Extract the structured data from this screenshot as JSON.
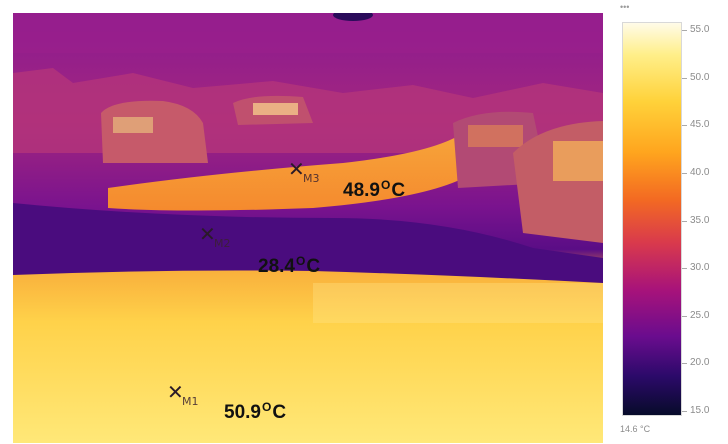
{
  "thermal_image": {
    "markers": [
      {
        "id": "M1",
        "cross": "✕",
        "tag": "M1",
        "value": "50.9",
        "unit": "C",
        "degree": "O"
      },
      {
        "id": "M2",
        "cross": "✕",
        "tag": "M2",
        "value": "28.4",
        "unit": "C",
        "degree": "O"
      },
      {
        "id": "M3",
        "cross": "✕",
        "tag": "M3",
        "value": "48.9",
        "unit": "C",
        "degree": "O"
      }
    ]
  },
  "color_scale": {
    "top_label": "•••",
    "ticks": [
      "55.0",
      "50.0",
      "45.0",
      "40.0",
      "35.0",
      "30.0",
      "25.0",
      "20.0",
      "15.0"
    ],
    "min_label": "14.6 °C",
    "colors": {
      "hot": "#fffbe8",
      "warm": "#ffa51e",
      "mid": "#d93a4c",
      "cool": "#6a0c8e",
      "cold": "#070b2a"
    }
  }
}
